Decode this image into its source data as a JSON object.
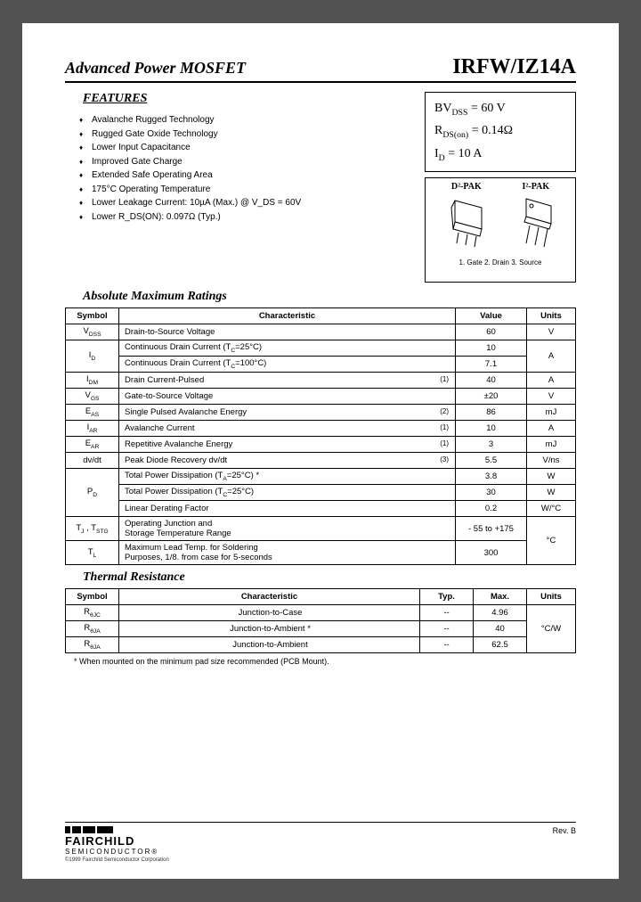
{
  "header": {
    "left": "Advanced Power MOSFET",
    "right": "IRFW/IZ14A"
  },
  "features": {
    "title": "FEATURES",
    "items": [
      "Avalanche Rugged Technology",
      "Rugged Gate Oxide Technology",
      "Lower Input Capacitance",
      "Improved Gate Charge",
      "Extended Safe Operating Area",
      "175°C Operating Temperature",
      "Lower Leakage Current: 10µA (Max.) @ V_DS = 60V",
      "Lower R_DS(ON): 0.097Ω (Typ.)"
    ]
  },
  "spec": {
    "line1_label": "BV",
    "line1_sub": "DSS",
    "line1_val": " =  60 V",
    "line2_label": "R",
    "line2_sub": "DS(on)",
    "line2_val": " = 0.14Ω",
    "line3_label": "I",
    "line3_sub": "D",
    "line3_val": "  = 10 A"
  },
  "packages": {
    "left": "D²-PAK",
    "right": "I²-PAK",
    "pins": "1. Gate  2. Drain  3. Source"
  },
  "abs_max": {
    "title": "Absolute Maximum Ratings",
    "headers": [
      "Symbol",
      "Characteristic",
      "Value",
      "Units"
    ],
    "rows": [
      {
        "sym": "V<sub>DSS</sub>",
        "char": "Drain-to-Source Voltage",
        "note": "",
        "val": "60",
        "unit": "V",
        "sym_rs": 1,
        "unit_rs": 1
      },
      {
        "sym": "I<sub>D</sub>",
        "char": "Continuous Drain Current (T<sub>C</sub>=25°C)",
        "note": "",
        "val": "10",
        "unit": "A",
        "sym_rs": 2,
        "unit_rs": 2
      },
      {
        "sym": "",
        "char": "Continuous Drain Current (T<sub>C</sub>=100°C)",
        "note": "",
        "val": "7.1",
        "unit": "",
        "sym_rs": 0,
        "unit_rs": 0
      },
      {
        "sym": "I<sub>DM</sub>",
        "char": "Drain Current-Pulsed",
        "note": "(1)",
        "val": "40",
        "unit": "A",
        "sym_rs": 1,
        "unit_rs": 1
      },
      {
        "sym": "V<sub>GS</sub>",
        "char": "Gate-to-Source Voltage",
        "note": "",
        "val": "±20",
        "unit": "V",
        "sym_rs": 1,
        "unit_rs": 1
      },
      {
        "sym": "E<sub>AS</sub>",
        "char": "Single Pulsed Avalanche Energy",
        "note": "(2)",
        "val": "86",
        "unit": "mJ",
        "sym_rs": 1,
        "unit_rs": 1
      },
      {
        "sym": "I<sub>AR</sub>",
        "char": "Avalanche Current",
        "note": "(1)",
        "val": "10",
        "unit": "A",
        "sym_rs": 1,
        "unit_rs": 1
      },
      {
        "sym": "E<sub>AR</sub>",
        "char": "Repetitive Avalanche Energy",
        "note": "(1)",
        "val": "3",
        "unit": "mJ",
        "sym_rs": 1,
        "unit_rs": 1
      },
      {
        "sym": "dv/dt",
        "char": "Peak Diode Recovery dv/dt",
        "note": "(3)",
        "val": "5.5",
        "unit": "V/ns",
        "sym_rs": 1,
        "unit_rs": 1
      },
      {
        "sym": "P<sub>D</sub>",
        "char": "Total Power Dissipation (T<sub>A</sub>=25°C) *",
        "note": "",
        "val": "3.8",
        "unit": "W",
        "sym_rs": 3,
        "unit_rs": 1
      },
      {
        "sym": "",
        "char": "Total Power Dissipation (T<sub>C</sub>=25°C)",
        "note": "",
        "val": "30",
        "unit": "W",
        "sym_rs": 0,
        "unit_rs": 1
      },
      {
        "sym": "",
        "char": "Linear Derating Factor",
        "note": "",
        "val": "0.2",
        "unit": "W/°C",
        "sym_rs": 0,
        "unit_rs": 1
      },
      {
        "sym": "T<sub>J</sub> , T<sub>STG</sub>",
        "char": "Operating Junction and<br>Storage Temperature Range",
        "note": "",
        "val": "- 55 to +175",
        "unit": "°C",
        "sym_rs": 1,
        "unit_rs": 2
      },
      {
        "sym": "T<sub>L</sub>",
        "char": "Maximum Lead Temp. for Soldering<br>Purposes, 1/8. from case for 5-seconds",
        "note": "",
        "val": "300",
        "unit": "",
        "sym_rs": 1,
        "unit_rs": 0
      }
    ]
  },
  "thermal": {
    "title": "Thermal Resistance",
    "headers": [
      "Symbol",
      "Characteristic",
      "Typ.",
      "Max.",
      "Units"
    ],
    "rows": [
      {
        "sym": "R<sub>θJC</sub>",
        "char": "Junction-to-Case",
        "typ": "--",
        "max": "4.96",
        "unit": "°C/W",
        "unit_rs": 3
      },
      {
        "sym": "R<sub>θJA</sub>",
        "char": "Junction-to-Ambient *",
        "typ": "--",
        "max": "40",
        "unit": "",
        "unit_rs": 0
      },
      {
        "sym": "R<sub>θJA</sub>",
        "char": "Junction-to-Ambient",
        "typ": "--",
        "max": "62.5",
        "unit": "",
        "unit_rs": 0
      }
    ]
  },
  "footnote": "* When mounted on the minimum pad size recommended (PCB Mount).",
  "footer": {
    "brand": "FAIRCHILD",
    "sub": "SEMICONDUCTOR®",
    "copy": "©1999 Fairchild Semiconductor Corporation",
    "rev": "Rev. B"
  }
}
